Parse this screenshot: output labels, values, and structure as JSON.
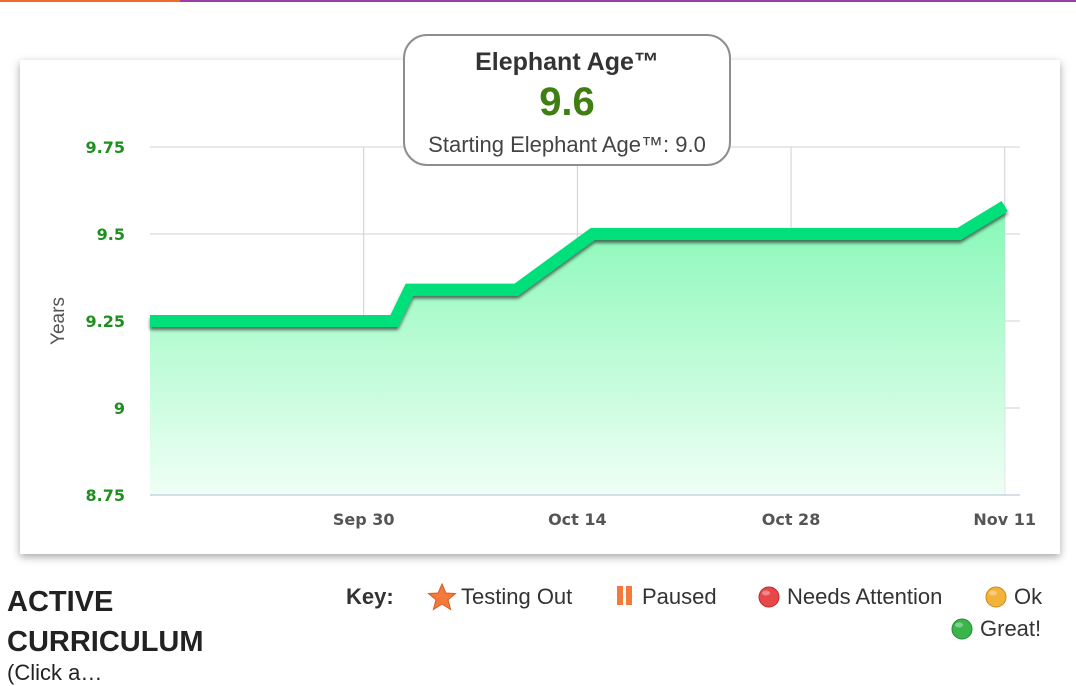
{
  "chart_data": {
    "type": "area",
    "ylabel": "Years",
    "xlabel": "",
    "ylim": [
      8.75,
      9.75
    ],
    "yticks": [
      8.75,
      9,
      9.25,
      9.5,
      9.75
    ],
    "ytick_labels": [
      "8.75",
      "9",
      "9.25",
      "9.5",
      "9.75"
    ],
    "xticks": [
      "Sep 30",
      "Oct 14",
      "Oct 28",
      "Nov 11"
    ],
    "xtick_dates": [
      "2024-09-30",
      "2024-10-14",
      "2024-10-28",
      "2024-11-11"
    ],
    "x_range": [
      "2024-09-16",
      "2024-11-12"
    ],
    "grid": true,
    "series": [
      {
        "x": [
          "2024-09-16",
          "2024-10-02",
          "2024-10-03",
          "2024-10-10",
          "2024-10-15",
          "2024-11-08",
          "2024-11-11"
        ],
        "y": [
          9.25,
          9.25,
          9.34,
          9.34,
          9.5,
          9.5,
          9.58
        ]
      }
    ],
    "colors": {
      "line": "#00e07a",
      "fill_top": "#86f8b6",
      "fill_bottom": "#effff5",
      "tick_y": "#1f8f1f",
      "tick_x": "#555555",
      "grid": "#d0d0d0"
    }
  },
  "age_box": {
    "title": "Elephant Age™",
    "value": "9.6",
    "starting_label": "Starting Elephant Age™: 9.0"
  },
  "section": {
    "title": "ACTIVE CURRICULUM",
    "subtitle": "(Click a…"
  },
  "key": {
    "label": "Key:",
    "items": [
      {
        "label": "Testing Out",
        "icon": "star-icon",
        "color": "#f5793a"
      },
      {
        "label": "Paused",
        "icon": "pause-icon",
        "color": "#f5793a"
      },
      {
        "label": "Needs Attention",
        "icon": "red-dot-icon",
        "color": "#e8474a"
      },
      {
        "label": "Ok",
        "icon": "yellow-dot-icon",
        "color": "#f3b238"
      },
      {
        "label": "Great!",
        "icon": "green-dot-icon",
        "color": "#39b54a"
      }
    ]
  }
}
